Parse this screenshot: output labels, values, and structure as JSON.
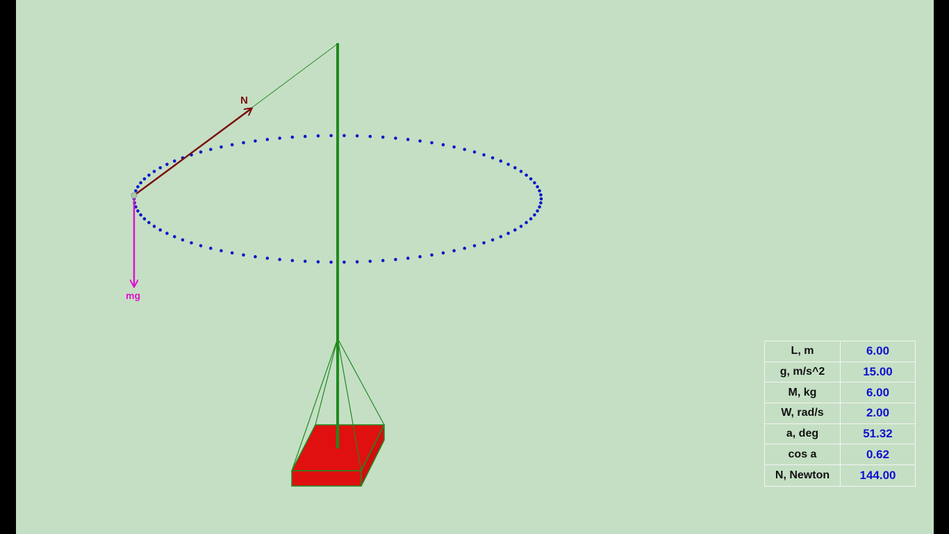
{
  "diagram": {
    "labels": {
      "normal_force": "N",
      "weight": "mg"
    },
    "colors": {
      "background": "#c5dfc4",
      "pole": "#1e8a1e",
      "string": "#2a8a2a",
      "orbit": "#0a18c8",
      "normal_force_arrow": "#7a0a0a",
      "weight_arrow": "#e010d0",
      "base": "#e01010"
    }
  },
  "parameters": [
    {
      "name": "L, m",
      "value": "6.00"
    },
    {
      "name": "g, m/s^2",
      "value": "15.00"
    },
    {
      "name": "M, kg",
      "value": "6.00"
    },
    {
      "name": "W, rad/s",
      "value": "2.00"
    },
    {
      "name": "a, deg",
      "value": "51.32"
    },
    {
      "name": "cos a",
      "value": "0.62"
    },
    {
      "name": "N, Newton",
      "value": "144.00"
    }
  ]
}
